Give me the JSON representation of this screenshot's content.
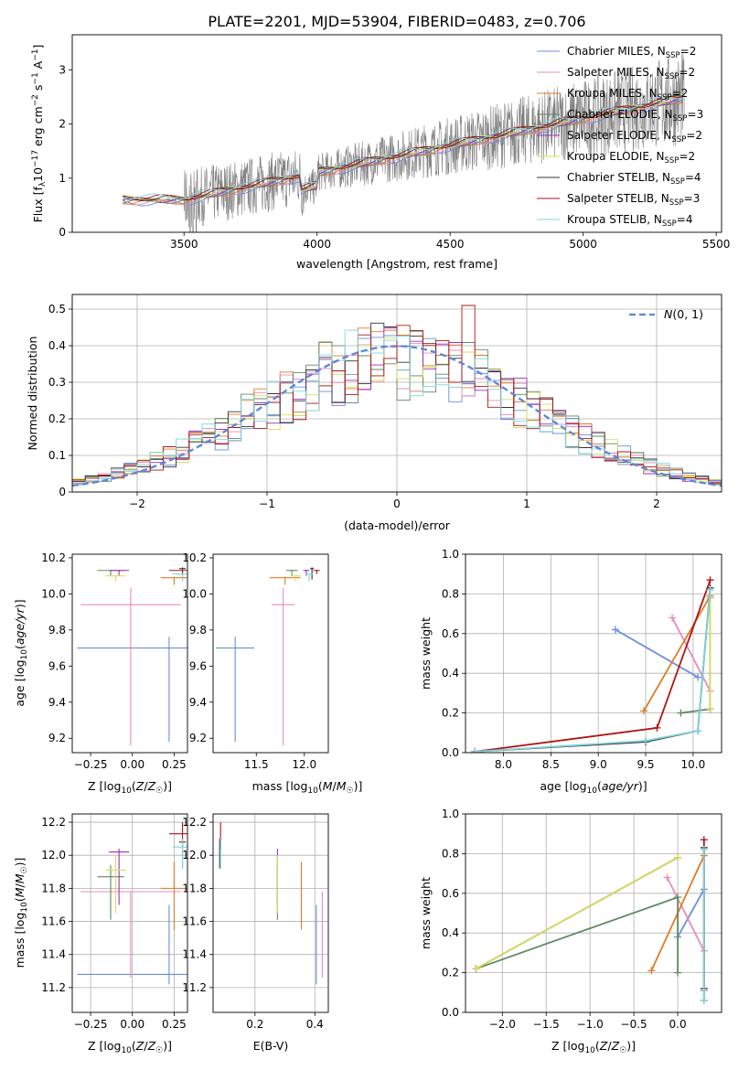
{
  "figure": {
    "title": "PLATE=2201, MJD=53904, FIBERID=0483, z=0.706"
  },
  "series": [
    {
      "name": "Chabrier MILES",
      "nssp": "2",
      "color": "#6a8fd8",
      "Z": 0.22,
      "Zerr": 0.55,
      "age": 9.7,
      "ageErr": 0.52,
      "mass": 11.28,
      "massErr": 0.2,
      "massLo": 11.22,
      "massHi": 11.7,
      "ebv": 0.405
    },
    {
      "name": "Salpeter MILES",
      "nssp": "2",
      "color": "#e88cbd",
      "Z": -0.01,
      "Zerr": 0.3,
      "age": 9.94,
      "ageErr": 0.78,
      "mass": 11.78,
      "massErr": 0.12,
      "massLo": 11.26,
      "massHi": 11.78,
      "ebv": 0.425
    },
    {
      "name": "Kroupa MILES",
      "nssp": "2",
      "color": "#e07b28",
      "Z": 0.25,
      "Zerr": 0.08,
      "age": 10.09,
      "ageErr": 0.04,
      "mass": 11.8,
      "massErr": 0.16,
      "massLo": 11.55,
      "massHi": 11.96,
      "ebv": 0.355
    },
    {
      "name": "Chabrier ELODIE",
      "nssp": "3",
      "color": "#5e8a60",
      "Z": -0.13,
      "Zerr": 0.08,
      "age": 10.13,
      "ageErr": 0.03,
      "mass": 11.87,
      "massErr": 0.06,
      "massLo": 11.61,
      "massHi": 11.94,
      "ebv": 0.275
    },
    {
      "name": "Salpeter ELODIE",
      "nssp": "2",
      "color": "#9b30b8",
      "Z": -0.08,
      "Zerr": 0.06,
      "age": 10.13,
      "ageErr": 0.03,
      "mass": 12.02,
      "massErr": 0.03,
      "massLo": 11.7,
      "massHi": 12.04,
      "ebv": 0.275
    },
    {
      "name": "Kroupa ELODIE",
      "nssp": "2",
      "color": "#d4e05a",
      "Z": -0.1,
      "Zerr": 0.06,
      "age": 10.1,
      "ageErr": 0.03,
      "mass": 11.91,
      "massErr": 0.05,
      "massLo": 11.65,
      "massHi": 12.0,
      "ebv": 0.275
    },
    {
      "name": "Chabrier STELIB",
      "nssp": "4",
      "color": "#333333",
      "Z": 0.3,
      "Zerr": 0.02,
      "age": 10.14,
      "ageErr": 0.06,
      "mass": 12.08,
      "massErr": 0.02,
      "massLo": 11.92,
      "massHi": 12.1,
      "ebv": 0.082
    },
    {
      "name": "Salpeter STELIB",
      "nssp": "3",
      "color": "#b01515",
      "Z": 0.3,
      "Zerr": 0.08,
      "age": 10.13,
      "ageErr": 0.02,
      "mass": 12.13,
      "massErr": 0.03,
      "massLo": 12.04,
      "massHi": 12.2,
      "ebv": 0.085
    },
    {
      "name": "Kroupa STELIB",
      "nssp": "4",
      "color": "#7fd4e0",
      "Z": 0.3,
      "Zerr": 0.06,
      "age": 10.11,
      "ageErr": 0.04,
      "mass": 12.05,
      "massErr": 0.04,
      "massLo": 11.92,
      "massHi": 12.1,
      "ebv": 0.085
    }
  ],
  "chart_data": [
    {
      "id": "spectrum",
      "type": "line",
      "xlabel": "wavelength [Angstrom, rest frame]",
      "ylabel": "Flux [f_λ 10^-17 erg cm^-2 s^-1 A^-1]",
      "xlim": [
        3080,
        5520
      ],
      "ylim": [
        0,
        3.65
      ],
      "xticks": [
        3500,
        4000,
        4500,
        5000,
        5500
      ],
      "yticks": [
        0,
        1,
        2,
        3
      ],
      "data_range": [
        3270,
        5380
      ],
      "legend_position": "upper-right"
    },
    {
      "id": "residual-hist",
      "type": "histogram",
      "xlabel": "(data-model)/error",
      "ylabel": "Normed distribution",
      "xlim": [
        -2.5,
        2.5
      ],
      "ylim": [
        0,
        0.54
      ],
      "xticks": [
        -2,
        -1,
        0,
        1,
        2
      ],
      "yticks": [
        0.0,
        0.1,
        0.2,
        0.3,
        0.4,
        0.5
      ],
      "bin_width": 0.1,
      "reference_curve": {
        "name": "N(0,1)",
        "color": "#5b87d6",
        "style": "dashed"
      },
      "legend_position": "upper-right",
      "grid": true
    },
    {
      "id": "age-Z",
      "type": "errorbar",
      "xfield": "Z",
      "yfield": "age",
      "xlabel": "Z [log10(Z/Z☉)]",
      "ylabel": "age [log10(age/yr)]",
      "xlim": [
        -0.36,
        0.33
      ],
      "ylim": [
        9.12,
        10.22
      ],
      "xticks": [
        -0.25,
        0.0,
        0.25
      ],
      "xticklabels": [
        "−0.25",
        "0.00",
        "0.25"
      ],
      "yticks": [
        9.2,
        9.4,
        9.6,
        9.8,
        10.0,
        10.2
      ],
      "yticklabels": [
        "9.2",
        "9.4",
        "9.6",
        "9.8",
        "10.0",
        "10.2"
      ],
      "grid": false
    },
    {
      "id": "age-mass",
      "type": "errorbar",
      "xfield": "mass",
      "yfield": "age",
      "xlabel": "mass [log10(M/M☉)]",
      "ylabel": "",
      "xlim": [
        11.05,
        12.25
      ],
      "ylim": [
        9.12,
        10.22
      ],
      "xticks": [
        11.5,
        12.0
      ],
      "xticklabels": [
        "11.5",
        "12.0"
      ],
      "yticks": [
        9.2,
        9.4,
        9.6,
        9.8,
        10.0,
        10.2
      ],
      "yticklabels": [
        "9.2",
        "9.4",
        "9.6",
        "9.8",
        "10.0",
        "10.2"
      ],
      "grid": false
    },
    {
      "id": "weight-age",
      "type": "line",
      "xlabel": "age [log10(age/yr)]",
      "ylabel": "mass weight",
      "xlim": [
        7.6,
        10.3
      ],
      "ylim": [
        0.0,
        1.0
      ],
      "xticks": [
        8.0,
        8.5,
        9.0,
        9.5,
        10.0
      ],
      "xticklabels": [
        "8.0",
        "8.5",
        "9.0",
        "9.5",
        "10.0"
      ],
      "yticks": [
        0.0,
        0.2,
        0.4,
        0.6,
        0.8,
        1.0
      ],
      "yticklabels": [
        "0.0",
        "0.2",
        "0.4",
        "0.6",
        "0.8",
        "1.0"
      ],
      "grid": true,
      "series": [
        {
          "name": "Chabrier MILES",
          "x": [
            9.18,
            10.05
          ],
          "y": [
            0.62,
            0.38
          ]
        },
        {
          "name": "Salpeter MILES",
          "x": [
            9.78,
            10.18
          ],
          "y": [
            0.68,
            0.31
          ]
        },
        {
          "name": "Kroupa MILES",
          "x": [
            9.48,
            10.18
          ],
          "y": [
            0.21,
            0.79
          ]
        },
        {
          "name": "Chabrier ELODIE",
          "x": [
            9.87,
            10.18
          ],
          "y": [
            0.2,
            0.22
          ]
        },
        {
          "name": "Salpeter ELODIE",
          "x": [
            10.18,
            10.18
          ],
          "y": [
            0.22,
            0.78
          ]
        },
        {
          "name": "Kroupa ELODIE",
          "x": [
            10.18,
            10.18
          ],
          "y": [
            0.22,
            0.78
          ]
        },
        {
          "name": "Chabrier STELIB",
          "x": [
            7.7,
            9.5,
            10.05,
            10.18
          ],
          "y": [
            0.005,
            0.055,
            0.11,
            0.83
          ]
        },
        {
          "name": "Salpeter STELIB",
          "x": [
            7.7,
            9.62,
            10.18
          ],
          "y": [
            0.005,
            0.125,
            0.87
          ]
        },
        {
          "name": "Kroupa STELIB",
          "x": [
            7.7,
            9.5,
            10.05,
            10.18
          ],
          "y": [
            0.005,
            0.06,
            0.11,
            0.82
          ]
        }
      ]
    },
    {
      "id": "mass-Z",
      "type": "errorbar",
      "xfield": "Z",
      "yfield": "mass",
      "xlabel": "Z [log10(Z/Z☉)]",
      "ylabel": "mass [log10(M/M☉)]",
      "xlim": [
        -0.36,
        0.33
      ],
      "ylim": [
        11.05,
        12.25
      ],
      "xticks": [
        -0.25,
        0.0,
        0.25
      ],
      "xticklabels": [
        "−0.25",
        "0.00",
        "0.25"
      ],
      "yticks": [
        11.2,
        11.4,
        11.6,
        11.8,
        12.0,
        12.2
      ],
      "yticklabels": [
        "11.2",
        "11.4",
        "11.6",
        "11.8",
        "12.0",
        "12.2"
      ],
      "grid": true
    },
    {
      "id": "mass-ebv",
      "type": "errorbar",
      "xfield": "ebv",
      "yfield": "mass",
      "xlabel": "E(B-V)",
      "ylabel": "",
      "xlim": [
        0.06,
        0.445
      ],
      "ylim": [
        11.05,
        12.25
      ],
      "xticks": [
        0.2,
        0.4
      ],
      "xticklabels": [
        "0.2",
        "0.4"
      ],
      "yticks": [
        11.2,
        11.4,
        11.6,
        11.8,
        12.0,
        12.2
      ],
      "yticklabels": [
        "11.2",
        "11.4",
        "11.6",
        "11.8",
        "12.0",
        "12.2"
      ],
      "grid": true
    },
    {
      "id": "weight-Z",
      "type": "line",
      "xlabel": "Z [log10(Z/Z☉)]",
      "ylabel": "mass weight",
      "xlim": [
        -2.42,
        0.5
      ],
      "ylim": [
        0.0,
        1.0
      ],
      "xticks": [
        -2.0,
        -1.5,
        -1.0,
        -0.5,
        0.0
      ],
      "xticklabels": [
        "−2.0",
        "−1.5",
        "−1.0",
        "−0.5",
        "0.0"
      ],
      "yticks": [
        0.0,
        0.2,
        0.4,
        0.6,
        0.8,
        1.0
      ],
      "yticklabels": [
        "0.0",
        "0.2",
        "0.4",
        "0.6",
        "0.8",
        "1.0"
      ],
      "grid": true,
      "series": [
        {
          "name": "Chabrier MILES",
          "x": [
            0.0,
            0.3
          ],
          "y": [
            0.38,
            0.62
          ]
        },
        {
          "name": "Salpeter MILES",
          "x": [
            -0.12,
            0.3
          ],
          "y": [
            0.68,
            0.31
          ]
        },
        {
          "name": "Kroupa MILES",
          "x": [
            -0.3,
            0.3
          ],
          "y": [
            0.21,
            0.79
          ]
        },
        {
          "name": "Chabrier ELODIE",
          "x": [
            -2.3,
            0.0,
            0.0
          ],
          "y": [
            0.22,
            0.58,
            0.2
          ]
        },
        {
          "name": "Salpeter ELODIE",
          "x": [
            -2.3,
            0.0
          ],
          "y": [
            0.22,
            0.78
          ]
        },
        {
          "name": "Kroupa ELODIE",
          "x": [
            -2.3,
            0.0
          ],
          "y": [
            0.22,
            0.78
          ]
        },
        {
          "name": "Chabrier STELIB",
          "x": [
            0.3,
            0.3,
            0.3
          ],
          "y": [
            0.83,
            0.11,
            0.06
          ]
        },
        {
          "name": "Salpeter STELIB",
          "x": [
            0.3,
            0.3
          ],
          "y": [
            0.87,
            0.12
          ]
        },
        {
          "name": "Kroupa STELIB",
          "x": [
            0.3,
            0.3,
            0.3
          ],
          "y": [
            0.82,
            0.11,
            0.06
          ]
        }
      ]
    }
  ]
}
